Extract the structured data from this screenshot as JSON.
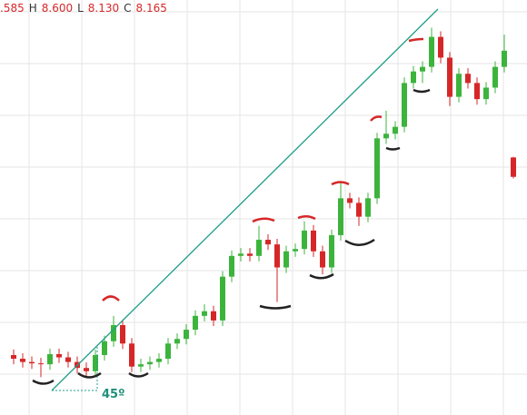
{
  "chart_data": {
    "type": "candlestick",
    "header": [
      ".585",
      "H",
      "8.600",
      "L",
      "8.130",
      "C",
      "8.165"
    ],
    "annotation": "45º",
    "ylim": [
      3,
      12
    ],
    "up_color": "#3cb43c",
    "down_color": "#d62728",
    "open": [
      4.3,
      4.22,
      4.15,
      4.12,
      4.1,
      4.32,
      4.25,
      4.15,
      4.02,
      3.95,
      4.3,
      4.6,
      4.95,
      4.55,
      4.05,
      4.1,
      4.15,
      4.22,
      4.55,
      4.65,
      4.85,
      5.15,
      5.25,
      5.05,
      6.0,
      6.45,
      6.5,
      6.45,
      6.8,
      6.7,
      6.2,
      6.55,
      6.6,
      7.0,
      6.55,
      6.2,
      6.9,
      7.7,
      7.6,
      7.3,
      7.7,
      9.0,
      9.1,
      9.25,
      10.2,
      10.45,
      10.55,
      11.2,
      10.75,
      9.9,
      10.4,
      10.2,
      9.85,
      10.1,
      10.55,
      8.585
    ],
    "high": [
      4.42,
      4.34,
      4.27,
      4.24,
      4.44,
      4.44,
      4.37,
      4.27,
      4.14,
      4.42,
      4.72,
      5.15,
      5.07,
      4.67,
      4.22,
      4.27,
      4.34,
      4.67,
      4.77,
      4.97,
      5.27,
      5.4,
      5.37,
      6.12,
      6.57,
      6.62,
      6.62,
      7.1,
      6.92,
      6.82,
      6.67,
      6.72,
      7.2,
      7.12,
      6.67,
      7.02,
      8.05,
      7.82,
      7.72,
      7.82,
      9.12,
      9.6,
      9.37,
      10.32,
      10.57,
      10.67,
      11.4,
      11.32,
      10.87,
      10.52,
      10.52,
      10.32,
      10.22,
      10.67,
      11.25,
      8.6
    ],
    "low": [
      4.1,
      4.03,
      4.0,
      3.82,
      3.98,
      4.13,
      4.03,
      3.9,
      3.83,
      3.83,
      4.18,
      4.48,
      4.43,
      3.93,
      3.93,
      3.98,
      4.03,
      4.1,
      4.43,
      4.53,
      4.73,
      5.03,
      4.93,
      4.93,
      5.88,
      6.33,
      6.33,
      6.33,
      6.58,
      5.45,
      6.08,
      6.43,
      6.48,
      6.43,
      6.05,
      6.08,
      6.78,
      7.48,
      7.1,
      7.18,
      7.58,
      8.88,
      8.98,
      9.13,
      10.08,
      10.2,
      10.43,
      10.63,
      9.7,
      9.78,
      10.08,
      9.73,
      9.73,
      9.98,
      10.43,
      8.13
    ],
    "close": [
      4.22,
      4.15,
      4.12,
      4.1,
      4.32,
      4.25,
      4.15,
      4.02,
      3.95,
      4.3,
      4.6,
      4.95,
      4.55,
      4.05,
      4.1,
      4.15,
      4.22,
      4.55,
      4.65,
      4.85,
      5.15,
      5.25,
      5.05,
      6.0,
      6.45,
      6.5,
      6.45,
      6.8,
      6.7,
      6.2,
      6.55,
      6.6,
      7.0,
      6.55,
      6.2,
      6.9,
      7.7,
      7.6,
      7.3,
      7.7,
      9.0,
      9.1,
      9.25,
      10.2,
      10.45,
      10.55,
      11.2,
      10.75,
      9.9,
      10.4,
      10.2,
      9.85,
      10.1,
      10.55,
      10.9,
      8.165
    ]
  }
}
